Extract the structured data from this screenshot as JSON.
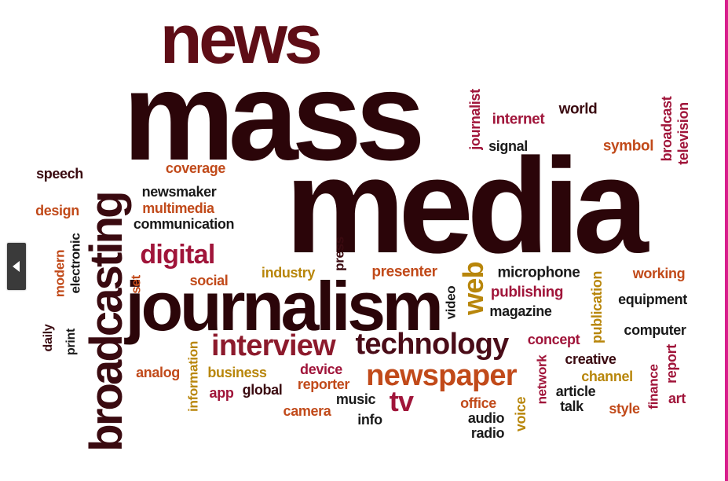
{
  "words": [
    {
      "text": "news",
      "color": "#5e0d16"
    },
    {
      "text": "mass",
      "color": "#2b0509"
    },
    {
      "text": "media",
      "color": "#2b0509"
    },
    {
      "text": "journalism",
      "color": "#2b0509"
    },
    {
      "text": "broadcasting",
      "color": "#3a0a10"
    },
    {
      "text": "interview",
      "color": "#8c1a2c"
    },
    {
      "text": "technology",
      "color": "#4a0c18"
    },
    {
      "text": "newspaper",
      "color": "#c14a1a"
    },
    {
      "text": "digital",
      "color": "#a0153a"
    },
    {
      "text": "web",
      "color": "#b8860b"
    },
    {
      "text": "tv",
      "color": "#a0153a"
    },
    {
      "text": "journalist",
      "color": "#a0153a"
    },
    {
      "text": "internet",
      "color": "#a0153a"
    },
    {
      "text": "world",
      "color": "#3a0a10"
    },
    {
      "text": "broadcast",
      "color": "#a0153a"
    },
    {
      "text": "television",
      "color": "#a0153a"
    },
    {
      "text": "signal",
      "color": "#1a1a1a"
    },
    {
      "text": "symbol",
      "color": "#c14a1a"
    },
    {
      "text": "speech",
      "color": "#3a0a10"
    },
    {
      "text": "coverage",
      "color": "#c14a1a"
    },
    {
      "text": "newsmaker",
      "color": "#1a1a1a"
    },
    {
      "text": "design",
      "color": "#c14a1a"
    },
    {
      "text": "multimedia",
      "color": "#c14a1a"
    },
    {
      "text": "communication",
      "color": "#1a1a1a"
    },
    {
      "text": "modern",
      "color": "#c14a1a"
    },
    {
      "text": "electronic",
      "color": "#1a1a1a"
    },
    {
      "text": "press",
      "color": "#3a0a10"
    },
    {
      "text": "set",
      "color": "#c14a1a"
    },
    {
      "text": "social",
      "color": "#c14a1a"
    },
    {
      "text": "industry",
      "color": "#b8860b"
    },
    {
      "text": "presenter",
      "color": "#c14a1a"
    },
    {
      "text": "microphone",
      "color": "#1a1a1a"
    },
    {
      "text": "working",
      "color": "#c14a1a"
    },
    {
      "text": "video",
      "color": "#1a1a1a"
    },
    {
      "text": "publishing",
      "color": "#a0153a"
    },
    {
      "text": "publication",
      "color": "#b8860b"
    },
    {
      "text": "equipment",
      "color": "#1a1a1a"
    },
    {
      "text": "magazine",
      "color": "#1a1a1a"
    },
    {
      "text": "computer",
      "color": "#1a1a1a"
    },
    {
      "text": "daily",
      "color": "#3a0a10"
    },
    {
      "text": "print",
      "color": "#1a1a1a"
    },
    {
      "text": "concept",
      "color": "#a0153a"
    },
    {
      "text": "report",
      "color": "#a0153a"
    },
    {
      "text": "analog",
      "color": "#c14a1a"
    },
    {
      "text": "information",
      "color": "#b8860b"
    },
    {
      "text": "business",
      "color": "#b8860b"
    },
    {
      "text": "device",
      "color": "#a0153a"
    },
    {
      "text": "creative",
      "color": "#3a0a10"
    },
    {
      "text": "network",
      "color": "#a0153a"
    },
    {
      "text": "channel",
      "color": "#b8860b"
    },
    {
      "text": "finance",
      "color": "#a0153a"
    },
    {
      "text": "app",
      "color": "#a0153a"
    },
    {
      "text": "global",
      "color": "#3a0a10"
    },
    {
      "text": "reporter",
      "color": "#c14a1a"
    },
    {
      "text": "article",
      "color": "#1a1a1a"
    },
    {
      "text": "art",
      "color": "#a0153a"
    },
    {
      "text": "music",
      "color": "#1a1a1a"
    },
    {
      "text": "office",
      "color": "#c14a1a"
    },
    {
      "text": "voice",
      "color": "#b8860b"
    },
    {
      "text": "talk",
      "color": "#1a1a1a"
    },
    {
      "text": "style",
      "color": "#c14a1a"
    },
    {
      "text": "camera",
      "color": "#c14a1a"
    },
    {
      "text": "audio",
      "color": "#1a1a1a"
    },
    {
      "text": "info",
      "color": "#1a1a1a"
    },
    {
      "text": "radio",
      "color": "#1a1a1a"
    }
  ],
  "navigation": {
    "prev_icon": "chevron-left-icon",
    "border_color": "#d81e8c"
  }
}
